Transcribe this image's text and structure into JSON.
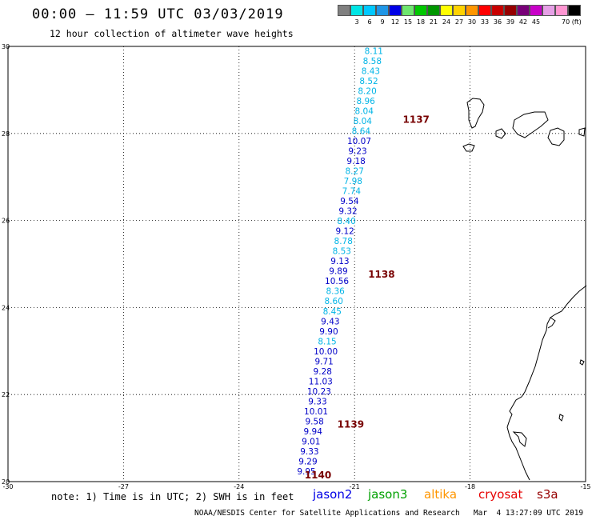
{
  "header": {
    "title": "00:00 – 11:59 UTC 03/03/2019",
    "subtitle": "12 hour collection of altimeter wave heights"
  },
  "colorbar": {
    "unit": "70 (ft)",
    "segments": [
      {
        "label": "",
        "color": "#808080"
      },
      {
        "label": "3",
        "color": "#00e5e5"
      },
      {
        "label": "6",
        "color": "#00c8ff"
      },
      {
        "label": "9",
        "color": "#1f96e6"
      },
      {
        "label": "12",
        "color": "#0000e6"
      },
      {
        "label": "15",
        "color": "#6ee66e"
      },
      {
        "label": "18",
        "color": "#00c800"
      },
      {
        "label": "21",
        "color": "#009600"
      },
      {
        "label": "24",
        "color": "#ffff00"
      },
      {
        "label": "27",
        "color": "#ffd200"
      },
      {
        "label": "30",
        "color": "#ff9600"
      },
      {
        "label": "33",
        "color": "#ff0000"
      },
      {
        "label": "36",
        "color": "#c80000"
      },
      {
        "label": "39",
        "color": "#960000"
      },
      {
        "label": "42",
        "color": "#780078"
      },
      {
        "label": "45",
        "color": "#c800c8"
      },
      {
        "label": "",
        "color": "#e6a0e6"
      },
      {
        "label": "",
        "color": "#ff96d2"
      },
      {
        "label": "",
        "color": "#000000"
      }
    ]
  },
  "map": {
    "lon_range": [
      -30,
      -15
    ],
    "lat_range": [
      20,
      30
    ],
    "x_ticks": [
      "-30",
      "-27",
      "-24",
      "-21",
      "-18",
      "-15"
    ],
    "y_ticks": [
      "20",
      "22",
      "24",
      "26",
      "28",
      "30"
    ],
    "grid": "dotted",
    "track_colors": {
      "cyan": "#00b4e6",
      "blue": "#0000c8"
    },
    "cycle_color": "#780000",
    "points": [
      {
        "label": "8.11",
        "color": "cyan",
        "lon": -20.5,
        "lat": 29.9
      },
      {
        "label": "8.58",
        "color": "cyan",
        "lon": -20.54,
        "lat": 29.67
      },
      {
        "label": "8.43",
        "color": "cyan",
        "lon": -20.58,
        "lat": 29.44
      },
      {
        "label": "8.52",
        "color": "cyan",
        "lon": -20.63,
        "lat": 29.21
      },
      {
        "label": "8.20",
        "color": "cyan",
        "lon": -20.67,
        "lat": 28.98
      },
      {
        "label": "8.96",
        "color": "cyan",
        "lon": -20.71,
        "lat": 28.75
      },
      {
        "label": "8.04",
        "color": "cyan",
        "lon": -20.75,
        "lat": 28.52
      },
      {
        "label": "8.04",
        "color": "cyan",
        "lon": -20.79,
        "lat": 28.29
      },
      {
        "label": "8.64",
        "color": "cyan",
        "lon": -20.83,
        "lat": 28.06
      },
      {
        "label": "10.07",
        "color": "blue",
        "lon": -20.88,
        "lat": 27.83
      },
      {
        "label": "9.23",
        "color": "blue",
        "lon": -20.92,
        "lat": 27.6
      },
      {
        "label": "9.18",
        "color": "blue",
        "lon": -20.96,
        "lat": 27.37
      },
      {
        "label": "8.27",
        "color": "cyan",
        "lon": -21.0,
        "lat": 27.14
      },
      {
        "label": "7.98",
        "color": "cyan",
        "lon": -21.04,
        "lat": 26.91
      },
      {
        "label": "7.74",
        "color": "cyan",
        "lon": -21.08,
        "lat": 26.68
      },
      {
        "label": "9.54",
        "color": "blue",
        "lon": -21.13,
        "lat": 26.45
      },
      {
        "label": "9.32",
        "color": "blue",
        "lon": -21.17,
        "lat": 26.22
      },
      {
        "label": "8.40",
        "color": "cyan",
        "lon": -21.21,
        "lat": 25.99
      },
      {
        "label": "9.12",
        "color": "blue",
        "lon": -21.25,
        "lat": 25.76
      },
      {
        "label": "8.78",
        "color": "cyan",
        "lon": -21.29,
        "lat": 25.53
      },
      {
        "label": "8.53",
        "color": "cyan",
        "lon": -21.33,
        "lat": 25.3
      },
      {
        "label": "9.13",
        "color": "blue",
        "lon": -21.38,
        "lat": 25.07
      },
      {
        "label": "9.89",
        "color": "blue",
        "lon": -21.42,
        "lat": 24.84
      },
      {
        "label": "10.56",
        "color": "blue",
        "lon": -21.46,
        "lat": 24.61
      },
      {
        "label": "8.36",
        "color": "cyan",
        "lon": -21.5,
        "lat": 24.38
      },
      {
        "label": "8.60",
        "color": "cyan",
        "lon": -21.54,
        "lat": 24.15
      },
      {
        "label": "8.45",
        "color": "cyan",
        "lon": -21.58,
        "lat": 23.92
      },
      {
        "label": "9.43",
        "color": "blue",
        "lon": -21.63,
        "lat": 23.69
      },
      {
        "label": "9.90",
        "color": "blue",
        "lon": -21.67,
        "lat": 23.46
      },
      {
        "label": "8.15",
        "color": "cyan",
        "lon": -21.71,
        "lat": 23.23
      },
      {
        "label": "10.00",
        "color": "blue",
        "lon": -21.75,
        "lat": 23.0
      },
      {
        "label": "9.71",
        "color": "blue",
        "lon": -21.79,
        "lat": 22.77
      },
      {
        "label": "9.28",
        "color": "blue",
        "lon": -21.83,
        "lat": 22.54
      },
      {
        "label": "11.03",
        "color": "blue",
        "lon": -21.88,
        "lat": 22.31
      },
      {
        "label": "10.23",
        "color": "blue",
        "lon": -21.92,
        "lat": 22.08
      },
      {
        "label": "9.33",
        "color": "blue",
        "lon": -21.96,
        "lat": 21.85
      },
      {
        "label": "10.01",
        "color": "blue",
        "lon": -22.0,
        "lat": 21.62
      },
      {
        "label": "9.58",
        "color": "blue",
        "lon": -22.04,
        "lat": 21.39
      },
      {
        "label": "9.94",
        "color": "blue",
        "lon": -22.08,
        "lat": 21.16
      },
      {
        "label": "9.01",
        "color": "blue",
        "lon": -22.13,
        "lat": 20.93
      },
      {
        "label": "9.33",
        "color": "blue",
        "lon": -22.17,
        "lat": 20.7
      },
      {
        "label": "9.29",
        "color": "blue",
        "lon": -22.21,
        "lat": 20.47
      },
      {
        "label": "9.95",
        "color": "blue",
        "lon": -22.25,
        "lat": 20.24
      }
    ],
    "cycles": [
      {
        "label": "1137",
        "lon": -19.4,
        "lat": 28.32
      },
      {
        "label": "1138",
        "lon": -20.3,
        "lat": 24.76
      },
      {
        "label": "1139",
        "lon": -21.1,
        "lat": 21.31
      },
      {
        "label": "1140",
        "lon": -21.95,
        "lat": 20.15
      }
    ]
  },
  "footer": {
    "note": "note: 1) Time is in UTC; 2) SWH is in feet",
    "satellites": [
      {
        "name": "jason2",
        "color": "#0000e6"
      },
      {
        "name": "jason3",
        "color": "#00a000"
      },
      {
        "name": "altika",
        "color": "#ff9600"
      },
      {
        "name": "cryosat",
        "color": "#e60000"
      },
      {
        "name": "s3a",
        "color": "#960000"
      }
    ],
    "credit": "NOAA/NESDIS Center for Satellite Applications and Research   Mar  4 13:27:09 UTC 2019"
  }
}
